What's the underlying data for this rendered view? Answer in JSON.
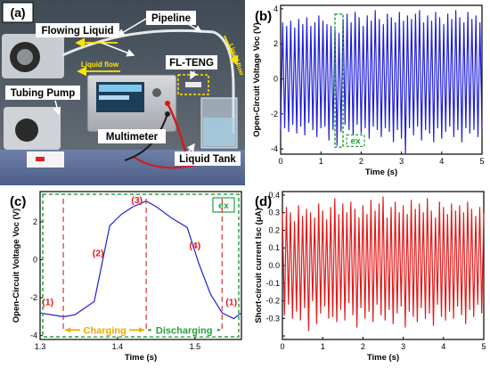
{
  "panel_a": {
    "letter": "(a)",
    "labels": {
      "pipeline": "Pipeline",
      "flowing_liquid": "Flowing Liquid",
      "liquid_flow_1": "Liquid flow",
      "liquid_flow_2": "Liquid flow",
      "fl_teng": "FL-TENG",
      "tubing_pump": "Tubing Pump",
      "multimeter": "Multimeter",
      "liquid_tank": "Liquid Tank"
    }
  },
  "chart_data": [
    {
      "id": "b",
      "type": "line",
      "panel_label": "(b)",
      "xlabel": "Time (s)",
      "ylabel": "Open-Circuit Voltage Voc (V)",
      "xlim": [
        0,
        5
      ],
      "ylim": [
        -4.3,
        4.2
      ],
      "xticks": [
        0,
        1,
        2,
        3,
        4,
        5
      ],
      "yticks": [
        -4,
        -2,
        0,
        2,
        4
      ],
      "color": "#1f1fd6",
      "annotation": {
        "text": "ex",
        "x_range": [
          1.35,
          1.55
        ]
      },
      "series": [
        {
          "x": [
            0.0,
            0.05,
            0.1,
            0.15,
            0.2,
            0.25,
            0.3,
            0.35,
            0.4,
            0.45,
            0.5,
            0.55,
            0.6,
            0.65,
            0.7,
            0.75,
            0.8,
            0.85,
            0.9,
            0.95,
            1.0,
            1.05,
            1.1,
            1.15,
            1.2,
            1.25,
            1.3,
            1.35,
            1.4,
            1.45,
            1.5,
            1.55,
            1.6,
            1.65,
            1.7,
            1.75,
            1.8,
            1.85,
            1.9,
            1.95,
            2.0,
            2.05,
            2.1,
            2.15,
            2.2,
            2.25,
            2.3,
            2.35,
            2.4,
            2.45,
            2.5,
            2.55,
            2.6,
            2.65,
            2.7,
            2.75,
            2.8,
            2.85,
            2.9,
            2.95,
            3.0,
            3.05,
            3.1,
            3.15,
            3.2,
            3.25,
            3.3,
            3.35,
            3.4,
            3.45,
            3.5,
            3.55,
            3.6,
            3.65,
            3.7,
            3.75,
            3.8,
            3.85,
            3.9,
            3.95,
            4.0,
            4.05,
            4.1,
            4.15,
            4.2,
            4.25,
            4.3,
            4.35,
            4.4,
            4.45,
            4.5,
            4.55,
            4.6,
            4.65,
            4.7,
            4.75,
            4.8,
            4.85,
            4.9,
            4.95,
            5.0
          ],
          "y": [
            -3.0,
            3.2,
            -2.8,
            3.0,
            -3.0,
            3.3,
            -2.6,
            2.9,
            -3.1,
            3.4,
            -2.7,
            3.1,
            -3.2,
            3.5,
            -2.5,
            3.0,
            -2.9,
            3.2,
            -3.3,
            3.6,
            -2.8,
            3.3,
            -2.7,
            3.1,
            -3.5,
            3.0,
            -2.9,
            2.8,
            -3.8,
            2.6,
            -3.0,
            3.4,
            -2.6,
            3.7,
            -2.9,
            3.2,
            -3.3,
            3.8,
            -2.6,
            3.5,
            -3.1,
            3.0,
            -2.8,
            3.6,
            -3.4,
            3.3,
            -2.7,
            3.9,
            -2.9,
            3.4,
            -3.3,
            3.1,
            -2.8,
            3.7,
            -3.0,
            3.5,
            -3.6,
            3.2,
            -2.9,
            3.8,
            -3.4,
            3.3,
            -4.3,
            3.6,
            -2.8,
            3.4,
            -3.2,
            3.7,
            -2.7,
            3.9,
            -3.5,
            3.2,
            -2.9,
            3.6,
            -3.1,
            3.3,
            -3.6,
            3.8,
            -2.8,
            3.5,
            -3.4,
            3.1,
            -3.0,
            3.7,
            -2.7,
            3.4,
            -3.3,
            3.9,
            -2.9,
            3.5,
            -3.6,
            3.2,
            -2.8,
            3.8,
            -3.1,
            3.4,
            -2.9,
            3.6,
            -3.3,
            3.2,
            -2.9
          ]
        }
      ]
    },
    {
      "id": "c",
      "type": "line",
      "panel_label": "(c)",
      "xlabel": "Time (s)",
      "ylabel": "Open-Circuit Voltage Voc (V)",
      "xlim": [
        1.3,
        1.56
      ],
      "ylim": [
        -4.2,
        3.6
      ],
      "xticks": [
        1.3,
        1.4,
        1.5
      ],
      "yticks": [
        -4,
        -2,
        0,
        2
      ],
      "color": "#1f1fd6",
      "box_label": "ex",
      "dashed_lines_x": [
        1.33,
        1.437,
        1.535
      ],
      "stage_labels": [
        {
          "text": "(1)",
          "x": 1.31,
          "y": -2.4
        },
        {
          "text": "(2)",
          "x": 1.375,
          "y": 0.2
        },
        {
          "text": "(3)",
          "x": 1.425,
          "y": 3.0
        },
        {
          "text": "(4)",
          "x": 1.5,
          "y": 0.6
        },
        {
          "text": "(1)",
          "x": 1.547,
          "y": -2.4
        }
      ],
      "phases": [
        {
          "text": "Charging",
          "x_start": 1.33,
          "x_end": 1.437,
          "color": "#f2a800"
        },
        {
          "text": "Discharging",
          "x_start": 1.437,
          "x_end": 1.535,
          "color": "#22a33a"
        }
      ],
      "series": [
        {
          "x": [
            1.3,
            1.33,
            1.345,
            1.37,
            1.39,
            1.405,
            1.42,
            1.437,
            1.45,
            1.47,
            1.49,
            1.505,
            1.52,
            1.535,
            1.55,
            1.56
          ],
          "y": [
            -2.8,
            -3.0,
            -2.9,
            -2.2,
            1.8,
            2.4,
            2.8,
            3.1,
            2.8,
            2.2,
            1.7,
            -0.2,
            -1.8,
            -2.8,
            -3.1,
            -2.8
          ]
        }
      ]
    },
    {
      "id": "d",
      "type": "line",
      "panel_label": "(d)",
      "xlabel": "Time (s)",
      "ylabel": "Short-circuit current Isc (μA)",
      "xlim": [
        0,
        5
      ],
      "ylim": [
        -0.42,
        0.42
      ],
      "xticks": [
        0,
        1,
        2,
        3,
        4,
        5
      ],
      "yticks": [
        -0.4,
        -0.3,
        -0.2,
        -0.1,
        0.0,
        0.1,
        0.2,
        0.3,
        0.4
      ],
      "ytick_labels": [
        "",
        "-0.3",
        "-0.2",
        "-0.1",
        "0.0",
        "0.1",
        "0.2",
        "0.3",
        "0.4"
      ],
      "color": "#e01b1b",
      "series": [
        {
          "x": [
            0.0,
            0.05,
            0.1,
            0.15,
            0.2,
            0.25,
            0.3,
            0.35,
            0.4,
            0.45,
            0.5,
            0.55,
            0.6,
            0.65,
            0.7,
            0.75,
            0.8,
            0.85,
            0.9,
            0.95,
            1.0,
            1.05,
            1.1,
            1.15,
            1.2,
            1.25,
            1.3,
            1.35,
            1.4,
            1.45,
            1.5,
            1.55,
            1.6,
            1.65,
            1.7,
            1.75,
            1.8,
            1.85,
            1.9,
            1.95,
            2.0,
            2.05,
            2.1,
            2.15,
            2.2,
            2.25,
            2.3,
            2.35,
            2.4,
            2.45,
            2.5,
            2.55,
            2.6,
            2.65,
            2.7,
            2.75,
            2.8,
            2.85,
            2.9,
            2.95,
            3.0,
            3.05,
            3.1,
            3.15,
            3.2,
            3.25,
            3.3,
            3.35,
            3.4,
            3.45,
            3.5,
            3.55,
            3.6,
            3.65,
            3.7,
            3.75,
            3.8,
            3.85,
            3.9,
            3.95,
            4.0,
            4.05,
            4.1,
            4.15,
            4.2,
            4.25,
            4.3,
            4.35,
            4.4,
            4.45,
            4.5,
            4.55,
            4.6,
            4.65,
            4.7,
            4.75,
            4.8,
            4.85,
            4.9,
            4.95,
            5.0
          ],
          "y": [
            0.3,
            -0.28,
            0.33,
            -0.22,
            0.3,
            -0.3,
            0.25,
            -0.26,
            0.34,
            -0.31,
            0.28,
            -0.24,
            0.32,
            -0.37,
            0.3,
            -0.2,
            0.27,
            -0.33,
            0.35,
            -0.27,
            0.31,
            -0.23,
            0.26,
            -0.3,
            0.33,
            -0.29,
            0.38,
            -0.32,
            0.29,
            -0.25,
            0.35,
            -0.31,
            0.3,
            -0.21,
            0.36,
            -0.28,
            0.32,
            -0.35,
            0.27,
            -0.24,
            0.34,
            -0.3,
            0.29,
            -0.26,
            0.37,
            -0.32,
            0.31,
            -0.22,
            0.35,
            -0.28,
            0.39,
            -0.31,
            0.27,
            -0.25,
            0.33,
            -0.33,
            0.36,
            -0.27,
            0.3,
            -0.23,
            0.34,
            -0.35,
            0.29,
            -0.26,
            0.37,
            -0.29,
            0.32,
            -0.32,
            0.35,
            -0.24,
            0.3,
            -0.3,
            0.38,
            -0.27,
            0.31,
            -0.34,
            0.27,
            -0.22,
            0.36,
            -0.29,
            0.33,
            -0.31,
            0.29,
            -0.26,
            0.35,
            -0.3,
            0.31,
            -0.23,
            0.34,
            -0.28,
            0.3,
            -0.33,
            0.36,
            -0.25,
            0.32,
            -0.29,
            0.28,
            -0.22,
            0.33,
            -0.27,
            0.3
          ]
        }
      ]
    }
  ]
}
